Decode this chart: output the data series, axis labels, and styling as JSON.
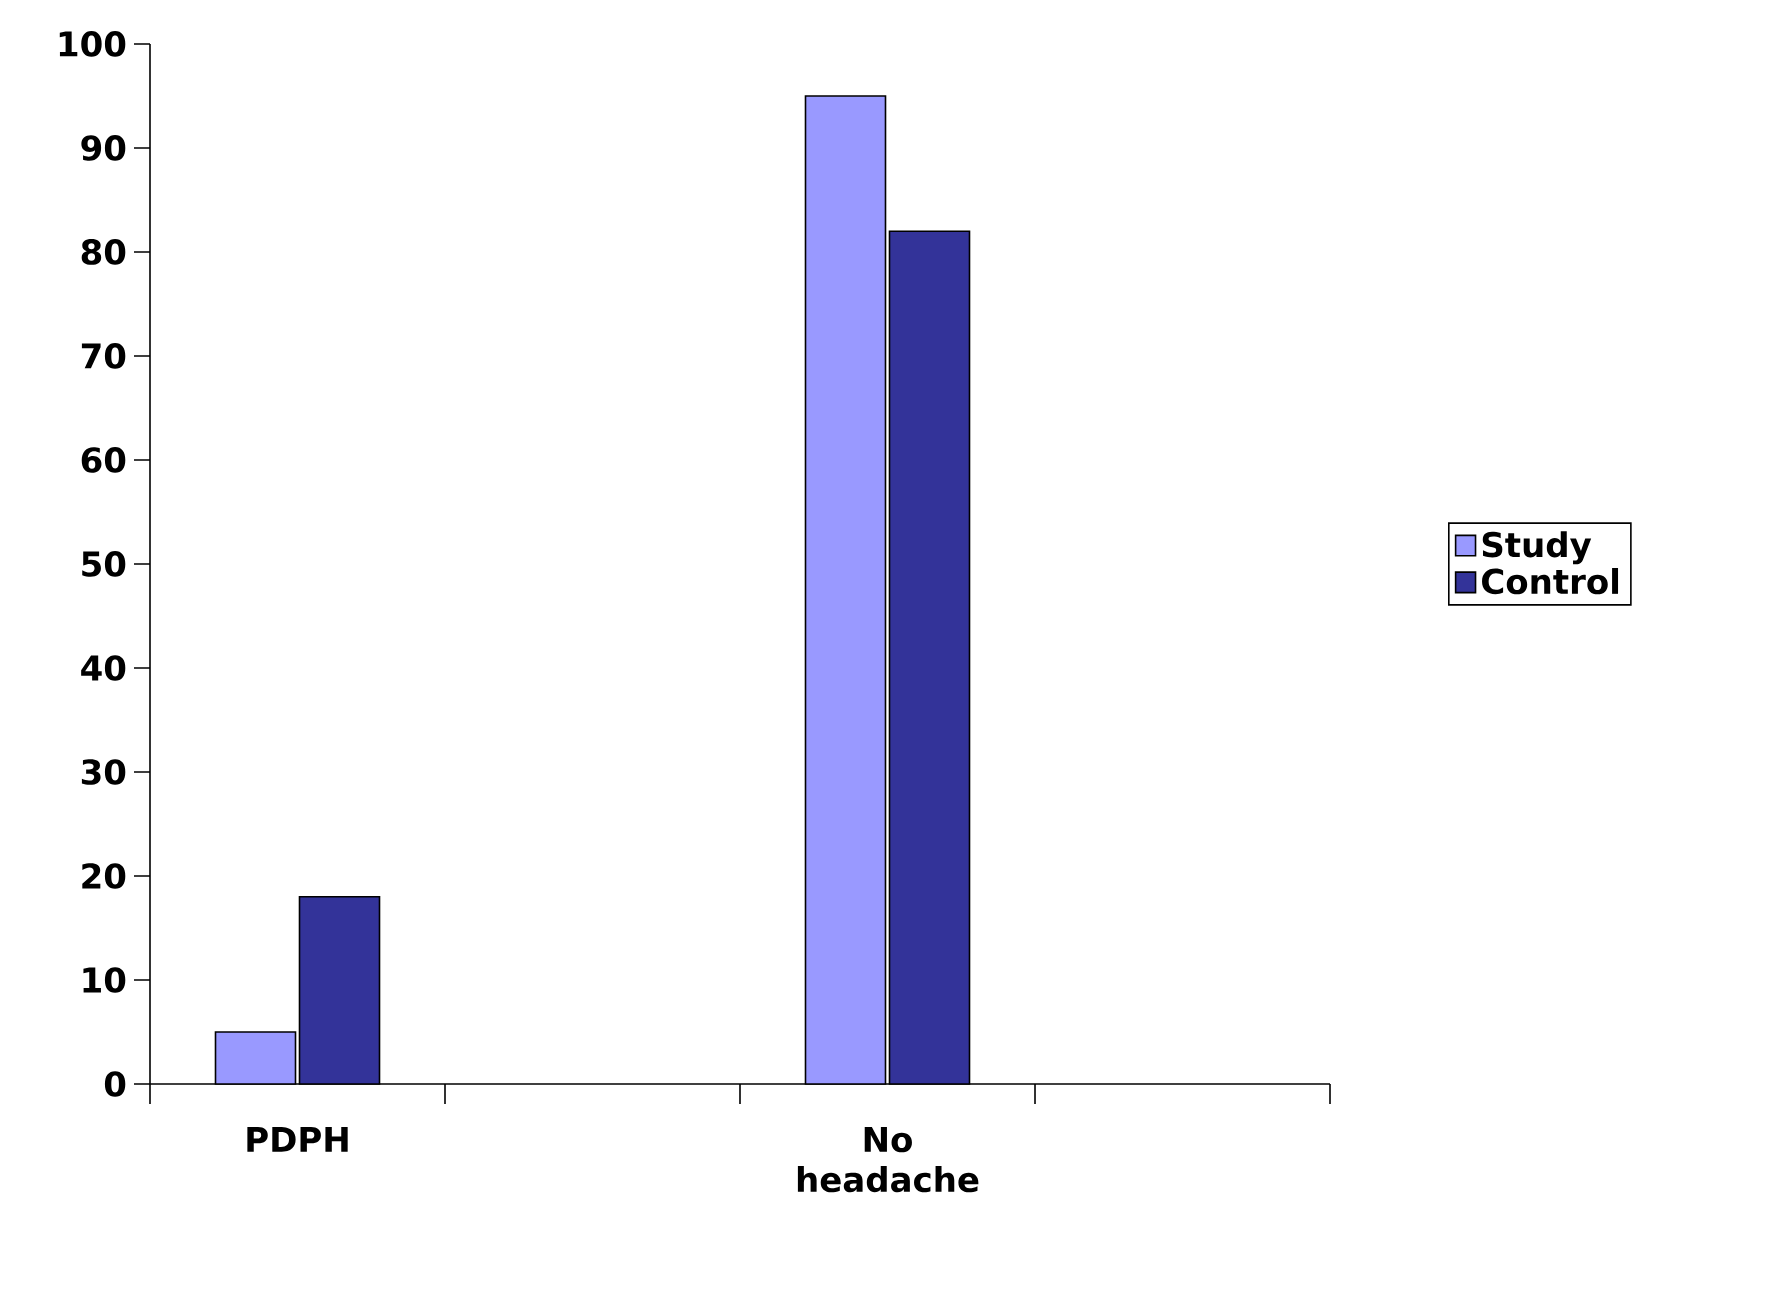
{
  "chart_data": {
    "type": "bar",
    "categories": [
      "PDPH",
      null,
      "No headache",
      null
    ],
    "series": [
      {
        "name": "Study",
        "color": "#9999ff",
        "values": [
          5,
          null,
          95,
          null
        ]
      },
      {
        "name": "Control",
        "color": "#333399",
        "values": [
          18,
          null,
          82,
          null
        ]
      }
    ],
    "ylim": [
      0,
      100
    ],
    "yticks": [
      0,
      10,
      20,
      30,
      40,
      50,
      60,
      70,
      80,
      90,
      100
    ],
    "grid": false,
    "legend": "right"
  }
}
